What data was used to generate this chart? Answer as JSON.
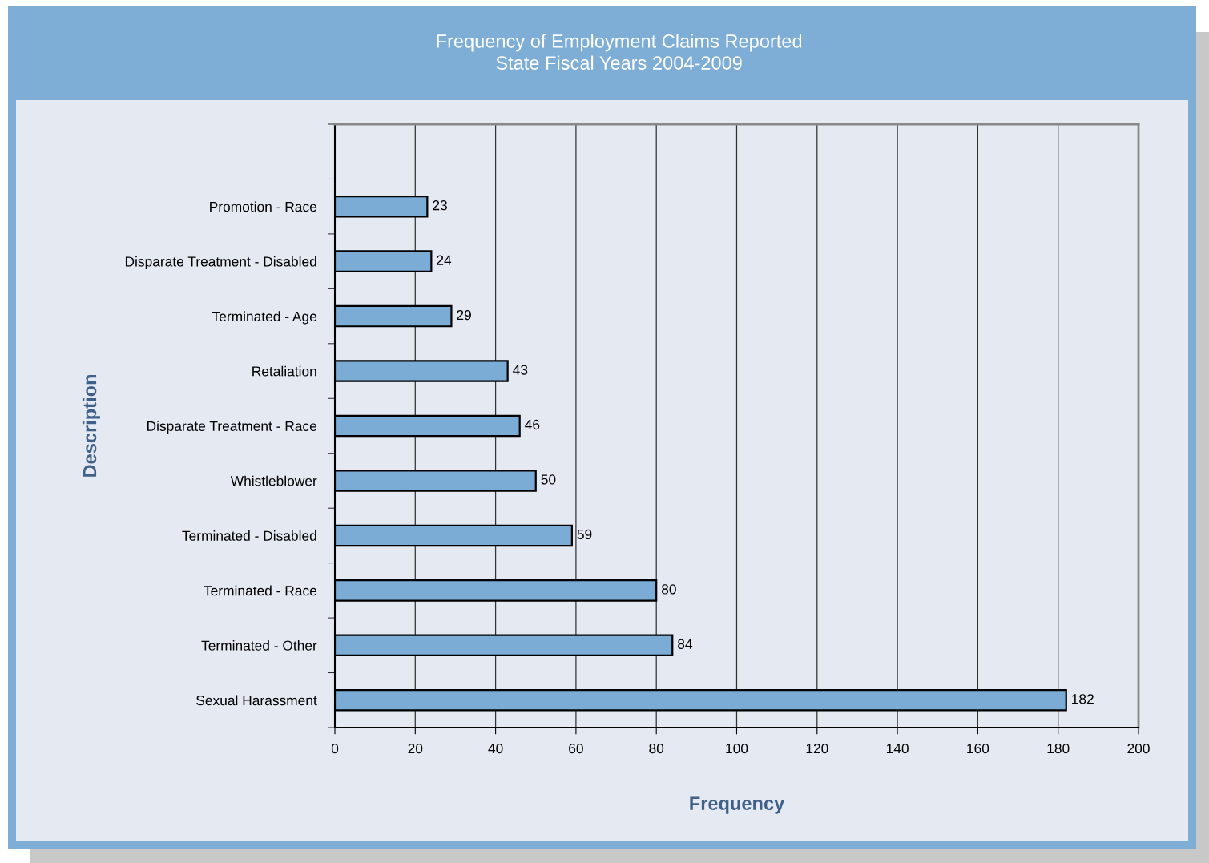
{
  "chart_data": {
    "type": "bar",
    "orientation": "horizontal",
    "title": "Frequency of Employment Claims Reported\nState Fiscal Years 2004-2009",
    "xlabel": "Frequency",
    "ylabel": "Description",
    "categories": [
      null,
      "Promotion - Race",
      "Disparate Treatment - Disabled",
      "Terminated - Age",
      "Retaliation",
      "Disparate Treatment - Race",
      "Whistleblower",
      "Terminated - Disabled",
      "Terminated - Race",
      "Terminated - Other",
      "Sexual Harassment"
    ],
    "values": [
      null,
      23,
      24,
      29,
      43,
      46,
      50,
      59,
      80,
      84,
      182
    ],
    "color": "#7bacd6",
    "xlim": [
      0,
      200
    ],
    "xticks": [
      0,
      20,
      40,
      60,
      80,
      100,
      120,
      140,
      160,
      180,
      200
    ],
    "grid": "x",
    "legend": false,
    "data_labels": true
  }
}
